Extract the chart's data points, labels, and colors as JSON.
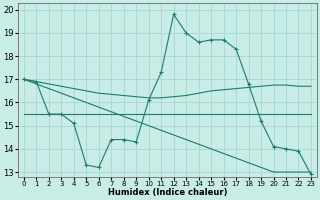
{
  "xlabel": "Humidex (Indice chaleur)",
  "x_ticks": [
    0,
    1,
    2,
    3,
    4,
    5,
    6,
    7,
    8,
    9,
    10,
    11,
    12,
    13,
    14,
    15,
    16,
    17,
    18,
    19,
    20,
    21,
    22,
    23
  ],
  "xlim": [
    -0.5,
    23.5
  ],
  "ylim": [
    12.8,
    20.3
  ],
  "y_ticks": [
    13,
    14,
    15,
    16,
    17,
    18,
    19,
    20
  ],
  "background_color": "#c8ece6",
  "grid_color": "#a0d4cc",
  "line_color": "#1e7b6e",
  "series": [
    {
      "x": [
        0,
        1,
        2,
        3,
        4,
        5,
        6,
        7,
        8,
        9,
        10,
        11,
        12,
        13,
        14,
        15,
        16,
        17,
        18,
        19,
        20,
        21,
        22,
        23
      ],
      "y": [
        17.0,
        16.9,
        15.5,
        15.5,
        15.1,
        13.3,
        13.2,
        14.4,
        14.4,
        14.3,
        16.1,
        17.3,
        19.8,
        19.0,
        18.6,
        18.7,
        18.7,
        18.3,
        16.8,
        15.2,
        14.1,
        14.0,
        13.9,
        12.9
      ],
      "marker": "+"
    },
    {
      "x": [
        0,
        1,
        2,
        3,
        4,
        5,
        6,
        7,
        8,
        9,
        10,
        11,
        12,
        13,
        14,
        15,
        16,
        17,
        18,
        19,
        20,
        21,
        22,
        23
      ],
      "y": [
        17.0,
        16.9,
        16.8,
        16.7,
        16.6,
        16.5,
        16.4,
        16.35,
        16.3,
        16.25,
        16.2,
        16.2,
        16.25,
        16.3,
        16.4,
        16.5,
        16.55,
        16.6,
        16.65,
        16.7,
        16.75,
        16.75,
        16.7,
        16.7
      ],
      "marker": null
    },
    {
      "x": [
        0,
        1,
        2,
        3,
        4,
        5,
        6,
        7,
        8,
        9,
        10,
        11,
        12,
        13,
        14,
        15,
        16,
        17,
        18,
        19,
        20,
        21,
        22,
        23
      ],
      "y": [
        15.5,
        15.5,
        15.5,
        15.5,
        15.5,
        15.5,
        15.5,
        15.5,
        15.5,
        15.5,
        15.5,
        15.5,
        15.5,
        15.5,
        15.5,
        15.5,
        15.5,
        15.5,
        15.5,
        15.5,
        15.5,
        15.5,
        15.5,
        15.5
      ],
      "marker": null
    },
    {
      "x": [
        0,
        1,
        2,
        3,
        4,
        5,
        6,
        7,
        8,
        9,
        10,
        11,
        12,
        13,
        14,
        15,
        16,
        17,
        18,
        19,
        20,
        21,
        22,
        23
      ],
      "y": [
        17.0,
        16.8,
        16.6,
        16.4,
        16.2,
        16.0,
        15.8,
        15.6,
        15.4,
        15.2,
        15.0,
        14.8,
        14.6,
        14.4,
        14.2,
        14.0,
        13.8,
        13.6,
        13.4,
        13.2,
        13.0,
        13.0,
        13.0,
        13.0
      ],
      "marker": null
    }
  ]
}
